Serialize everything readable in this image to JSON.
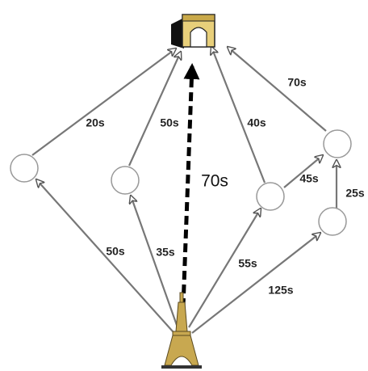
{
  "edges": [
    {
      "label": "50s"
    },
    {
      "label": "20s"
    },
    {
      "label": "35s"
    },
    {
      "label": "50s"
    },
    {
      "label": "55s"
    },
    {
      "label": "40s"
    },
    {
      "label": "45s"
    },
    {
      "label": "70s"
    },
    {
      "label": "125s"
    },
    {
      "label": "25s"
    }
  ],
  "direct_route": {
    "label": "70s"
  }
}
